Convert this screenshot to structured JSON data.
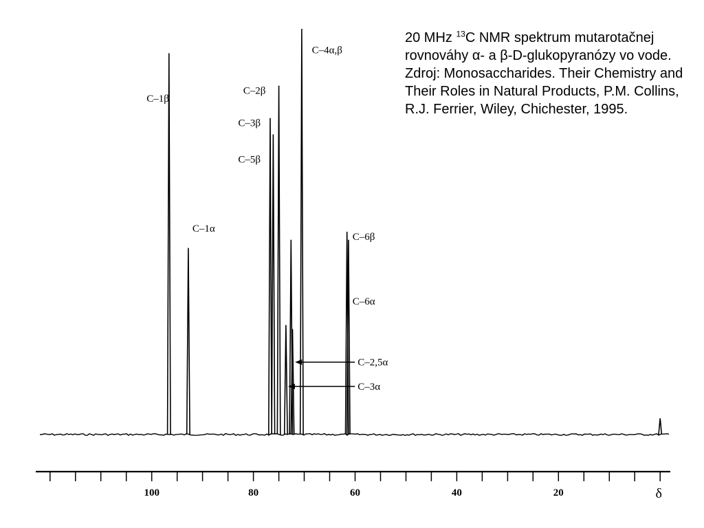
{
  "caption": {
    "freq": "20 MHz ",
    "isotope_mass": "13",
    "rest": "C NMR spektrum mutarotačnej rovnováhy α- a β-D-glukopyranózy vo vode. Zdroj: Monosaccharides. Their Chemistry and Their Roles in Natural Products, P.M. Collins, R.J. Ferrier, Wiley, Chichester, 1995."
  },
  "chart_data": {
    "type": "line",
    "title": "",
    "xlabel": "δ",
    "ylabel": "",
    "xlim": [
      122,
      -2
    ],
    "x_reversed": true,
    "ylim": [
      0,
      1
    ],
    "grid": false,
    "x_ticks": [
      120,
      115,
      110,
      105,
      100,
      95,
      90,
      85,
      80,
      75,
      70,
      65,
      60,
      55,
      50,
      45,
      40,
      35,
      30,
      25,
      20,
      15,
      10,
      5,
      0
    ],
    "x_tick_labels": [
      {
        "value": 100,
        "text": "100"
      },
      {
        "value": 80,
        "text": "80"
      },
      {
        "value": 60,
        "text": "60"
      },
      {
        "value": 40,
        "text": "40"
      },
      {
        "value": 20,
        "text": "20"
      },
      {
        "value": 0,
        "text": "δ"
      }
    ],
    "peaks": [
      {
        "shift": 96.6,
        "height": 0.94,
        "label": "C–1β"
      },
      {
        "shift": 92.8,
        "height": 0.46
      },
      {
        "shift": 76.7,
        "height": 0.78
      },
      {
        "shift": 76.1,
        "height": 0.74
      },
      {
        "shift": 75.0,
        "height": 0.86
      },
      {
        "shift": 73.6,
        "height": 0.27
      },
      {
        "shift": 72.6,
        "height": 0.48
      },
      {
        "shift": 72.3,
        "height": 0.26
      },
      {
        "shift": 70.5,
        "height": 1.0
      },
      {
        "shift": 61.6,
        "height": 0.5
      },
      {
        "shift": 61.3,
        "height": 0.48
      },
      {
        "shift": 0.0,
        "height": 0.04
      }
    ],
    "annotations": [
      {
        "text": "C–1β",
        "shift": 101.0,
        "level": 0.82
      },
      {
        "text": "C–2β",
        "shift": 82.0,
        "level": 0.84
      },
      {
        "text": "C–3β",
        "shift": 83.0,
        "level": 0.76
      },
      {
        "text": "C–5β",
        "shift": 83.0,
        "level": 0.67
      },
      {
        "text": "C–1α",
        "shift": 92.0,
        "level": 0.5
      },
      {
        "text": "C–4α,β",
        "shift": 68.5,
        "level": 0.94
      },
      {
        "text": "C–6β",
        "shift": 60.5,
        "level": 0.48
      },
      {
        "text": "C–6α",
        "shift": 60.5,
        "level": 0.32
      },
      {
        "text": "C–2,5α",
        "shift": 59.5,
        "level": 0.17,
        "arrow_to": 71.8
      },
      {
        "text": "C–3α",
        "shift": 59.5,
        "level": 0.11,
        "arrow_to": 73.2
      }
    ]
  }
}
